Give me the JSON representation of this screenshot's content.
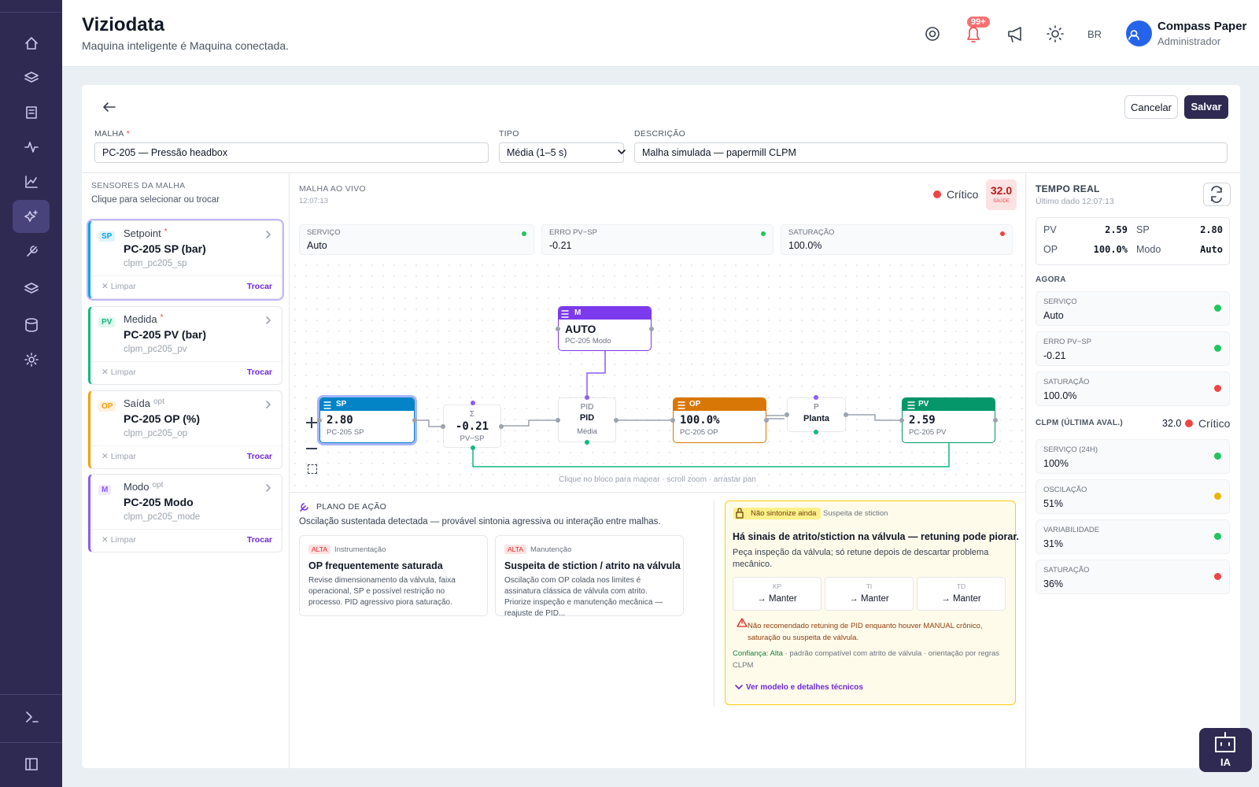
{
  "header": {
    "title": "Viziodata",
    "subtitle": "Maquina inteligente é Maquina conectada.",
    "notifications": "99+",
    "lang": "BR",
    "user": {
      "name": "Compass Paper",
      "role": "Administrador"
    }
  },
  "toolbar": {
    "cancel": "Cancelar",
    "save": "Salvar"
  },
  "form": {
    "fields": [
      {
        "label": "MALHA",
        "flag": "*",
        "value": "PC-205 — Pressão headbox"
      },
      {
        "label": "TIPO",
        "value": "Média (1–5 s)"
      },
      {
        "label": "DESCRIÇÃO",
        "value": "Malha simulada — papermill CLPM"
      }
    ]
  },
  "sensors": {
    "title": "SENSORES DA MALHA",
    "hint": "Clique para selecionar ou trocar",
    "clear": "✕ Limpar",
    "swap": "Trocar",
    "items": [
      {
        "badge": "SP",
        "role": "Setpoint",
        "flag": "*",
        "flag_color": "#ef4444",
        "name": "PC-205 SP (bar)",
        "tag": "clpm_pc205_sp",
        "color": "#0ea5e9"
      },
      {
        "badge": "PV",
        "role": "Medida",
        "flag": "*",
        "flag_color": "#ef4444",
        "name": "PC-205 PV (bar)",
        "tag": "clpm_pc205_pv",
        "color": "#10b981"
      },
      {
        "badge": "OP",
        "role": "Saída",
        "flag": "opt",
        "flag_color": "#9ca3af",
        "name": "PC-205 OP (%)",
        "tag": "clpm_pc205_op",
        "color": "#f59e0b"
      },
      {
        "badge": "M",
        "role": "Modo",
        "flag": "opt",
        "flag_color": "#9ca3af",
        "name": "PC-205 Modo",
        "tag": "clpm_pc205_mode",
        "color": "#8b5cf6"
      }
    ]
  },
  "live": {
    "title": "MALHA AO VIVO",
    "time": "12:07:13",
    "status": "Crítico",
    "score": "32.0",
    "score_label": "SAÚDE",
    "kpis": [
      {
        "label": "SERVIÇO",
        "value": "Auto",
        "color": "#22c55e"
      },
      {
        "label": "ERRO PV−SP",
        "value": "-0.21",
        "color": "#22c55e"
      },
      {
        "label": "SATURAÇÃO",
        "value": "100.0%",
        "color": "#ef4444"
      }
    ],
    "blocks": {
      "mode": {
        "title": "M",
        "value": "AUTO",
        "sub": "PC-205 Modo",
        "color": "#7c3aed"
      },
      "sp": {
        "title": "SP",
        "value": "2.80",
        "sub": "PC-205 SP",
        "color": "#0284c7"
      },
      "sum": {
        "title": "Σ",
        "value": "-0.21",
        "sub": "PV−SP"
      },
      "pid": {
        "title": "PID",
        "value": "PID",
        "sub": "Média"
      },
      "op": {
        "title": "OP",
        "value": "100.0%",
        "sub": "PC-205 OP",
        "color": "#d97706"
      },
      "plant": {
        "title": "P",
        "value": "Planta"
      },
      "pv": {
        "title": "PV",
        "value": "2.59",
        "sub": "PC-205 PV",
        "color": "#059669"
      }
    },
    "hint": "Clique no bloco para mapear · scroll zoom · arrastar pan"
  },
  "plan": {
    "title": "PLANO DE AÇÃO",
    "text": "Oscilação sustentada detectada — provável sintonia agressiva ou interação entre malhas.",
    "cards": [
      {
        "priority": "ALTA",
        "area": "Instrumentação",
        "title": "OP frequentemente saturada",
        "text": "Revise dimensionamento da válvula, faixa operacional, SP e possível restrição no processo. PID agressivo piora saturação."
      },
      {
        "priority": "ALTA",
        "area": "Manutenção",
        "title": "Suspeita de stiction / atrito na válvula",
        "text": "Oscilação com OP colada nos limites é assinatura clássica de válvula com atrito. Priorize inspeção e manutenção mecânica — reajuste de PID..."
      }
    ]
  },
  "advice": {
    "badge": "Não sintonize ainda",
    "tag": "Suspeita de stiction",
    "title": "Há sinais de atrito/stiction na válvula — retuning pode piorar.",
    "text": "Peça inspeção da válvula; só retune depois de descartar problema mecânico.",
    "params": [
      {
        "label": "KP",
        "value": "→ Manter"
      },
      {
        "label": "TI",
        "value": "→ Manter"
      },
      {
        "label": "TD",
        "value": "→ Manter"
      }
    ],
    "warning": "Não recomendado retuning de PID enquanto houver MANUAL crônico, saturação ou suspeita de válvula.",
    "confidence": "Confiança: Alta",
    "confidence_text": "· padrão compatível com atrito de válvula · orientação por regras CLPM",
    "link": "Ver modelo e detalhes técnicos"
  },
  "realtime": {
    "title": "TEMPO REAL",
    "subtitle": "Último dado 12:07:13",
    "summary": [
      {
        "label": "PV",
        "value": "2.59"
      },
      {
        "label": "SP",
        "value": "2.80"
      },
      {
        "label": "OP",
        "value": "100.0%"
      },
      {
        "label": "Modo",
        "value": "Auto"
      }
    ],
    "now_title": "AGORA",
    "now": [
      {
        "label": "SERVIÇO",
        "value": "Auto",
        "color": "#22c55e"
      },
      {
        "label": "ERRO PV−SP",
        "value": "-0.21",
        "color": "#22c55e"
      },
      {
        "label": "SATURAÇÃO",
        "value": "100.0%",
        "color": "#ef4444"
      }
    ],
    "clpm_title": "CLPM (ÚLTIMA AVAL.)",
    "clpm_score": "32.0",
    "clpm_status": "Crítico",
    "clpm": [
      {
        "label": "SERVIÇO (24H)",
        "value": "100%",
        "color": "#22c55e"
      },
      {
        "label": "OSCILAÇÃO",
        "value": "51%",
        "color": "#eab308"
      },
      {
        "label": "VARIABILIDADE",
        "value": "31%",
        "color": "#22c55e"
      },
      {
        "label": "SATURAÇÃO",
        "value": "36%",
        "color": "#ef4444"
      }
    ]
  },
  "assistant": {
    "label": "IA"
  }
}
